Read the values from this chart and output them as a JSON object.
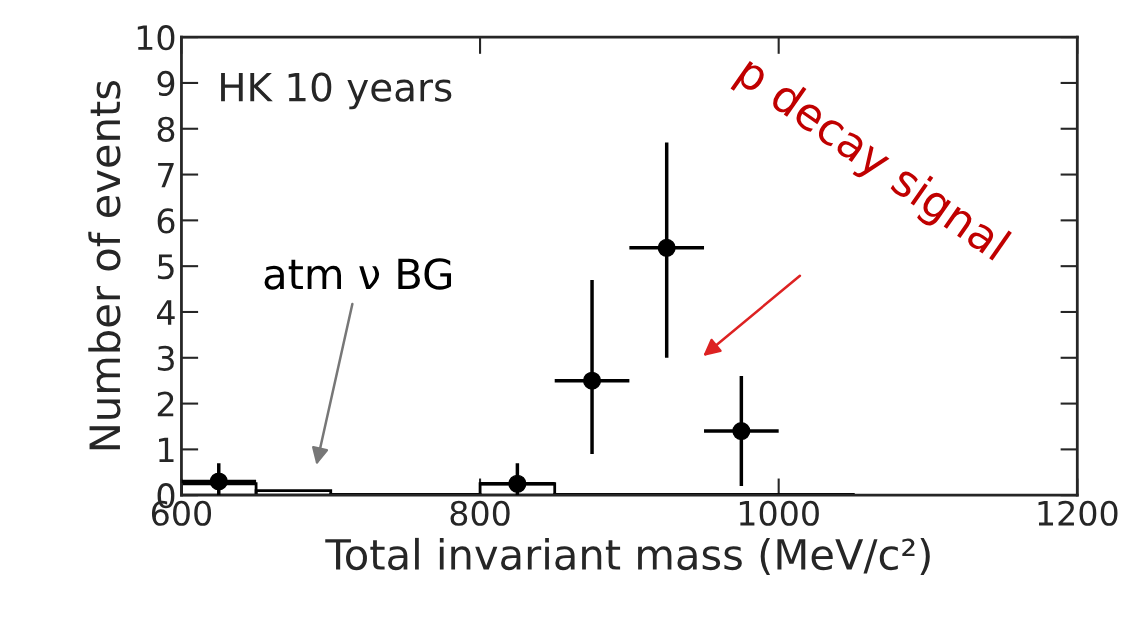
{
  "chart_data": {
    "type": "scatter",
    "xlabel": "Total invariant mass (MeV/c²)",
    "ylabel": "Number of events",
    "xlim": [
      600,
      1200
    ],
    "xticks": [
      600,
      800,
      1000,
      1200
    ],
    "ylim": [
      0,
      10
    ],
    "yticks": [
      0,
      1,
      2,
      3,
      4,
      5,
      6,
      7,
      8,
      9,
      10
    ],
    "grid": false,
    "legend": false,
    "marker": "circle",
    "series": [
      {
        "type": "histogram",
        "color": "#000000",
        "bins": [
          600,
          650,
          700,
          750,
          800,
          850,
          900,
          950,
          1000,
          1050
        ],
        "values": [
          0.25,
          0.1,
          0.02,
          0.02,
          0.25,
          0.02,
          0.02,
          0.02,
          0.02
        ]
      },
      {
        "color": "#000000",
        "x": [
          625,
          825,
          875,
          925,
          975
        ],
        "values": [
          0.3,
          0.25,
          2.5,
          5.4,
          1.4
        ],
        "xerrors": [
          25,
          25,
          25,
          25,
          25
        ],
        "errors": [
          [
            0,
            0.7
          ],
          [
            0,
            0.7
          ],
          [
            0.9,
            4.7
          ],
          [
            3.0,
            7.7
          ],
          [
            0.2,
            2.6
          ]
        ]
      }
    ],
    "annotations": [
      "HK 10 years",
      "atm ν BG",
      "p decay signal"
    ]
  }
}
